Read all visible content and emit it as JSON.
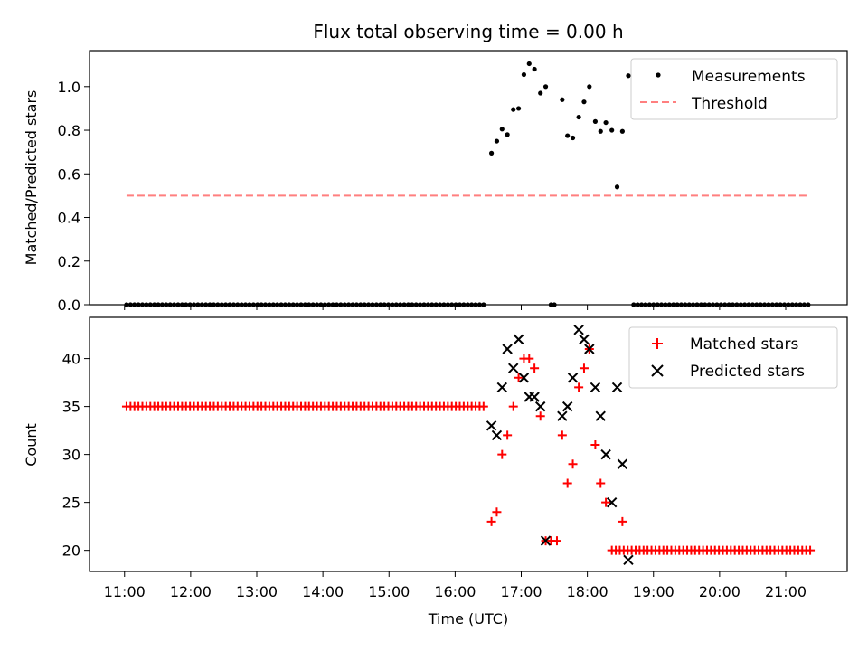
{
  "chart_data": [
    {
      "type": "scatter",
      "title": "Flux total observing time = 0.00 h",
      "xlabel": "",
      "ylabel": "Matched/Predicted stars",
      "xlim": [
        10.47,
        21.93
      ],
      "ylim": [
        0.0,
        1.165
      ],
      "yticks": [
        0.0,
        0.2,
        0.4,
        0.6,
        0.8,
        1.0
      ],
      "ytick_labels": [
        "0.0",
        "0.2",
        "0.4",
        "0.6",
        "0.8",
        "1.0"
      ],
      "legend_position": "upper right",
      "series": [
        {
          "name": "Measurements",
          "marker": "dot",
          "color": "#000000",
          "zero_runs": [
            {
              "start": 11.03,
              "end": 16.48,
              "step": 0.06
            },
            {
              "start": 18.7,
              "end": 21.38,
              "step": 0.06
            }
          ],
          "points": [
            [
              17.45,
              0.0
            ],
            [
              17.5,
              0.0
            ],
            [
              16.55,
              0.695
            ],
            [
              16.63,
              0.75
            ],
            [
              16.71,
              0.805
            ],
            [
              16.79,
              0.78
            ],
            [
              16.88,
              0.895
            ],
            [
              16.96,
              0.9
            ],
            [
              17.04,
              1.055
            ],
            [
              17.12,
              1.105
            ],
            [
              17.2,
              1.08
            ],
            [
              17.29,
              0.97
            ],
            [
              17.37,
              1.0
            ],
            [
              17.62,
              0.94
            ],
            [
              17.7,
              0.775
            ],
            [
              17.78,
              0.765
            ],
            [
              17.87,
              0.86
            ],
            [
              17.95,
              0.93
            ],
            [
              18.03,
              1.0
            ],
            [
              18.12,
              0.84
            ],
            [
              18.2,
              0.795
            ],
            [
              18.28,
              0.835
            ],
            [
              18.37,
              0.8
            ],
            [
              18.45,
              0.54
            ],
            [
              18.53,
              0.795
            ],
            [
              18.62,
              1.05
            ]
          ]
        },
        {
          "name": "Threshold",
          "type": "line",
          "style": "dashed",
          "color": "#ff7f7f",
          "x": [
            11.03,
            21.35
          ],
          "y": [
            0.5,
            0.5
          ]
        }
      ]
    },
    {
      "type": "scatter",
      "title": "",
      "xlabel": "Time (UTC)",
      "ylabel": "Count",
      "xlim": [
        10.47,
        21.93
      ],
      "ylim": [
        17.8,
        44.3
      ],
      "yticks": [
        20,
        25,
        30,
        35,
        40
      ],
      "ytick_labels": [
        "20",
        "25",
        "30",
        "35",
        "40"
      ],
      "xticks": [
        11,
        12,
        13,
        14,
        15,
        16,
        17,
        18,
        19,
        20,
        21
      ],
      "xtick_labels": [
        "11:00",
        "12:00",
        "13:00",
        "14:00",
        "15:00",
        "16:00",
        "17:00",
        "18:00",
        "19:00",
        "20:00",
        "21:00"
      ],
      "legend_position": "upper right",
      "series": [
        {
          "name": "Matched stars",
          "marker": "plus",
          "color": "#ff0000",
          "constant_runs": [
            {
              "start": 11.03,
              "end": 16.48,
              "step": 0.06,
              "value": 35
            },
            {
              "start": 18.37,
              "end": 21.38,
              "step": 0.06,
              "value": 20
            }
          ],
          "points": [
            [
              16.55,
              23
            ],
            [
              16.63,
              24
            ],
            [
              16.71,
              30
            ],
            [
              16.79,
              32
            ],
            [
              16.88,
              35
            ],
            [
              16.96,
              38
            ],
            [
              17.04,
              40
            ],
            [
              17.12,
              40
            ],
            [
              17.2,
              39
            ],
            [
              17.29,
              34
            ],
            [
              17.37,
              21
            ],
            [
              17.45,
              21
            ],
            [
              17.54,
              21
            ],
            [
              17.62,
              32
            ],
            [
              17.7,
              27
            ],
            [
              17.78,
              29
            ],
            [
              17.87,
              37
            ],
            [
              17.95,
              39
            ],
            [
              18.03,
              41
            ],
            [
              18.12,
              31
            ],
            [
              18.2,
              27
            ],
            [
              18.28,
              25
            ],
            [
              18.53,
              23
            ]
          ]
        },
        {
          "name": "Predicted stars",
          "marker": "x",
          "color": "#000000",
          "points": [
            [
              16.55,
              33
            ],
            [
              16.63,
              32
            ],
            [
              16.71,
              37
            ],
            [
              16.79,
              41
            ],
            [
              16.88,
              39
            ],
            [
              16.96,
              42
            ],
            [
              17.04,
              38
            ],
            [
              17.12,
              36
            ],
            [
              17.2,
              36
            ],
            [
              17.29,
              35
            ],
            [
              17.37,
              21
            ],
            [
              17.62,
              34
            ],
            [
              17.7,
              35
            ],
            [
              17.78,
              38
            ],
            [
              17.87,
              43
            ],
            [
              17.95,
              42
            ],
            [
              18.03,
              41
            ],
            [
              18.12,
              37
            ],
            [
              18.2,
              34
            ],
            [
              18.28,
              30
            ],
            [
              18.37,
              25
            ],
            [
              18.45,
              37
            ],
            [
              18.53,
              29
            ],
            [
              18.62,
              19
            ]
          ]
        }
      ]
    }
  ]
}
